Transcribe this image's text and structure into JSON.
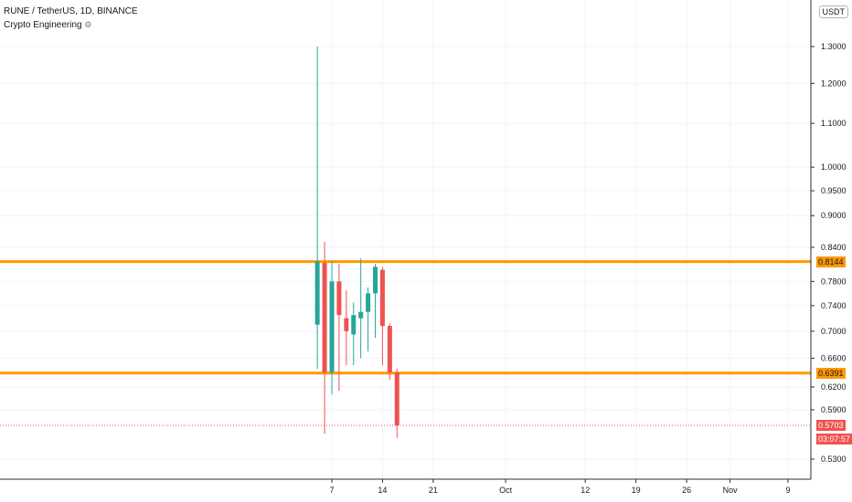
{
  "header": {
    "symbol": "RUNE / TetherUS, 1D, BINANCE",
    "indicator": "Crypto Engineering"
  },
  "currency": "USDT",
  "colors": {
    "up": "#26a69a",
    "down": "#ef5350",
    "level": "#ff9800",
    "grid": "#f0f3fa",
    "axis": "#2a2e39"
  },
  "price_tags": {
    "resistance": "0.8144",
    "support": "0.6391",
    "last": "0.5703",
    "countdown": "03:07:57"
  },
  "chart_data": {
    "type": "candlestick",
    "log_scale": true,
    "y_ticks": [
      1.3,
      1.2,
      1.1,
      1.0,
      0.95,
      0.9,
      0.84,
      0.78,
      0.74,
      0.7,
      0.66,
      0.62,
      0.59,
      0.53
    ],
    "y_tick_labels": [
      "1.3000",
      "1.2000",
      "1.1000",
      "1.0000",
      "0.9500",
      "0.9000",
      "0.8400",
      "0.7800",
      "0.7400",
      "0.7000",
      "0.6600",
      "0.6200",
      "0.5900",
      "0.5300"
    ],
    "x_ticks": [
      "7",
      "14",
      "21",
      "Oct",
      "12",
      "19",
      "26",
      "Nov",
      "9"
    ],
    "levels": [
      0.8144,
      0.6391
    ],
    "last_price": 0.5703,
    "candles": [
      {
        "date": "2020-09-05",
        "open": 0.71,
        "high": 1.3,
        "low": 0.645,
        "close": 0.815
      },
      {
        "date": "2020-09-06",
        "open": 0.812,
        "high": 0.85,
        "low": 0.56,
        "close": 0.64
      },
      {
        "date": "2020-09-07",
        "open": 0.64,
        "high": 0.815,
        "low": 0.61,
        "close": 0.78
      },
      {
        "date": "2020-09-08",
        "open": 0.78,
        "high": 0.81,
        "low": 0.615,
        "close": 0.725
      },
      {
        "date": "2020-09-09",
        "open": 0.72,
        "high": 0.765,
        "low": 0.65,
        "close": 0.7
      },
      {
        "date": "2020-09-10",
        "open": 0.695,
        "high": 0.745,
        "low": 0.65,
        "close": 0.725
      },
      {
        "date": "2020-09-11",
        "open": 0.72,
        "high": 0.82,
        "low": 0.66,
        "close": 0.73
      },
      {
        "date": "2020-09-12",
        "open": 0.73,
        "high": 0.77,
        "low": 0.67,
        "close": 0.76
      },
      {
        "date": "2020-09-13",
        "open": 0.76,
        "high": 0.81,
        "low": 0.69,
        "close": 0.805
      },
      {
        "date": "2020-09-14",
        "open": 0.8,
        "high": 0.805,
        "low": 0.65,
        "close": 0.708
      },
      {
        "date": "2020-09-15",
        "open": 0.708,
        "high": 0.712,
        "low": 0.63,
        "close": 0.64
      },
      {
        "date": "2020-09-16",
        "open": 0.64,
        "high": 0.645,
        "low": 0.555,
        "close": 0.5703
      }
    ]
  }
}
